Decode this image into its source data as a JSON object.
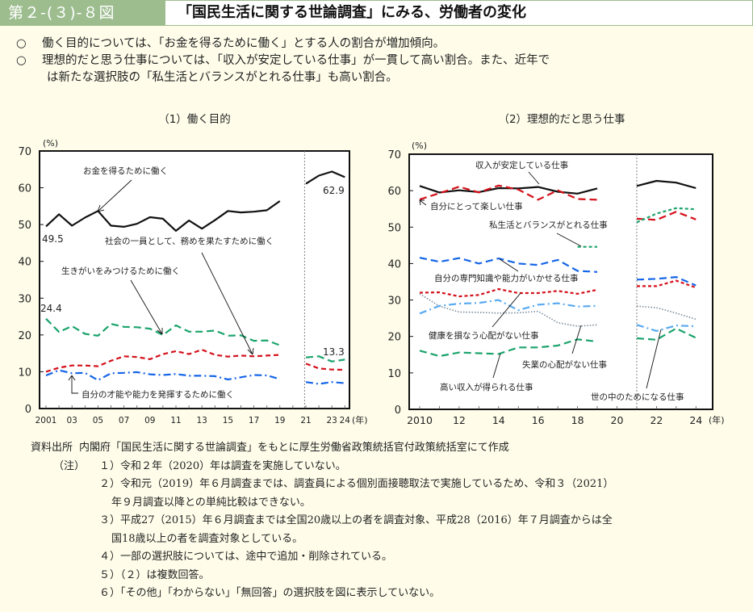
{
  "header": {
    "figure_number": "第２-(３)-８図",
    "title": "「国民生活に関する世論調査」にみる、労働者の変化"
  },
  "summary": {
    "bullet_icon": "○",
    "items": [
      "働く目的については、「お金を得るために働く」とする人の割合が増加傾向。",
      "理想的だと思う仕事については、「収入が安定している仕事」が一貫して高い割合。また、近年で",
      "は新たな選択肢の「私生活とバランスがとれる仕事」も高い割合。"
    ]
  },
  "chart_data": [
    {
      "type": "line",
      "title": "（1）働く目的",
      "ylabel": "(%)",
      "xlabel": "(年)",
      "ylim": [
        0,
        70
      ],
      "yticks": [
        0,
        10,
        20,
        30,
        40,
        50,
        60,
        70
      ],
      "xticks": [
        {
          "x": 2001,
          "label": "2001"
        },
        {
          "x": 2003,
          "label": "03"
        },
        {
          "x": 2005,
          "label": "05"
        },
        {
          "x": 2007,
          "label": "07"
        },
        {
          "x": 2009,
          "label": "09"
        },
        {
          "x": 2011,
          "label": "11"
        },
        {
          "x": 2013,
          "label": "13"
        },
        {
          "x": 2015,
          "label": "15"
        },
        {
          "x": 2017,
          "label": "17"
        },
        {
          "x": 2019,
          "label": "19"
        },
        {
          "x": 2021,
          "label": "21"
        },
        {
          "x": 2023,
          "label": "23"
        },
        {
          "x": 2024,
          "label": "24"
        }
      ],
      "xlim": [
        2000.5,
        2024.5
      ],
      "break_at": 2020.9,
      "grid": false,
      "series": [
        {
          "name": "お金を得るために働く",
          "color": "#111111",
          "dash": "solid",
          "x": [
            2001,
            2002,
            2003,
            2004,
            2005,
            2006,
            2007,
            2008,
            2009,
            2010,
            2011,
            2012,
            2013,
            2014,
            2015,
            2016,
            2017,
            2018,
            2019
          ],
          "values": [
            49.5,
            52.8,
            49.7,
            51.9,
            53.7,
            49.7,
            49.4,
            50.2,
            52.0,
            51.6,
            48.3,
            51.1,
            48.9,
            51.2,
            53.7,
            53.3,
            53.5,
            53.9,
            56.4
          ],
          "x2": [
            2021,
            2022,
            2023,
            2024
          ],
          "values2": [
            61.1,
            63.3,
            64.4,
            62.9
          ]
        },
        {
          "name": "生きがいをみつけるために働く",
          "color": "#1aa36b",
          "dash": "longdash",
          "x": [
            2001,
            2002,
            2003,
            2004,
            2005,
            2006,
            2007,
            2008,
            2009,
            2010,
            2011,
            2012,
            2013,
            2014,
            2015,
            2016,
            2017,
            2018,
            2019
          ],
          "values": [
            24.4,
            20.8,
            22.4,
            20.3,
            19.8,
            23.0,
            22.2,
            22.1,
            21.7,
            20.0,
            22.6,
            20.9,
            20.9,
            21.2,
            19.8,
            19.9,
            18.4,
            18.5,
            17.2
          ],
          "x2": [
            2021,
            2022,
            2023,
            2024
          ],
          "values2": [
            13.9,
            14.2,
            12.8,
            13.3
          ]
        },
        {
          "name": "社会の一員として、務めを果たすために働く",
          "color": "#d4101a",
          "dash": "dash",
          "x": [
            2001,
            2002,
            2003,
            2004,
            2005,
            2006,
            2007,
            2008,
            2009,
            2010,
            2011,
            2012,
            2013,
            2014,
            2015,
            2016,
            2017,
            2018,
            2019
          ],
          "values": [
            10.0,
            11.1,
            11.7,
            11.7,
            11.5,
            13.0,
            14.2,
            14.0,
            13.4,
            14.8,
            15.6,
            14.8,
            16.0,
            14.6,
            14.1,
            14.4,
            14.2,
            14.4,
            14.6
          ],
          "x2": [
            2021,
            2022,
            2023,
            2024
          ],
          "values2": [
            12.2,
            10.9,
            10.6,
            10.5
          ]
        },
        {
          "name": "自分の才能や能力を発揮するために働く",
          "color": "#1565e8",
          "dash": "dashdot",
          "x": [
            2001,
            2002,
            2003,
            2004,
            2005,
            2006,
            2007,
            2008,
            2009,
            2010,
            2011,
            2012,
            2013,
            2014,
            2015,
            2016,
            2017,
            2018,
            2019
          ],
          "values": [
            9.0,
            10.4,
            9.6,
            9.7,
            7.7,
            9.6,
            9.7,
            9.9,
            9.3,
            9.1,
            9.4,
            8.9,
            8.9,
            8.8,
            7.9,
            8.5,
            9.1,
            9.0,
            8.0
          ],
          "x2": [
            2021,
            2022,
            2023,
            2024
          ],
          "values2": [
            7.2,
            6.7,
            7.2,
            6.9
          ]
        }
      ],
      "annotations": [
        {
          "text": "49.5"
        },
        {
          "text": "62.9"
        },
        {
          "text": "24.4"
        },
        {
          "text": "13.3"
        },
        {
          "text": "お金を得るために働く"
        },
        {
          "text": "社会の一員として、務めを果たすために働く"
        },
        {
          "text": "生きがいをみつけるために働く"
        },
        {
          "text": "自分の才能や能力を発揮するために働く"
        }
      ]
    },
    {
      "type": "line",
      "title": "（2）理想的だと思う仕事",
      "ylabel": "(%)",
      "xlabel": "(年)",
      "ylim": [
        0,
        70
      ],
      "yticks": [
        0,
        10,
        20,
        30,
        40,
        50,
        60,
        70
      ],
      "xticks": [
        {
          "x": 2010,
          "label": "2010"
        },
        {
          "x": 2012,
          "label": "12"
        },
        {
          "x": 2014,
          "label": "14"
        },
        {
          "x": 2016,
          "label": "16"
        },
        {
          "x": 2018,
          "label": "18"
        },
        {
          "x": 2020,
          "label": "20"
        },
        {
          "x": 2022,
          "label": "22"
        },
        {
          "x": 2024,
          "label": "24"
        }
      ],
      "xlim": [
        2009.5,
        2024.9
      ],
      "break_at": 2021.0,
      "grid": false,
      "series": [
        {
          "name": "収入が安定している仕事",
          "color": "#111111",
          "dash": "solid",
          "x": [
            2010,
            2011,
            2012,
            2013,
            2014,
            2015,
            2016,
            2017,
            2018,
            2019
          ],
          "values": [
            61.3,
            59.5,
            60.1,
            59.6,
            60.7,
            60.6,
            61.0,
            59.7,
            59.2,
            60.6
          ],
          "x2": [
            2021,
            2022,
            2023,
            2024
          ],
          "values2": [
            61.3,
            62.7,
            62.2,
            60.7
          ]
        },
        {
          "name": "自分にとって楽しい仕事",
          "color": "#d4101a",
          "dash": "longdash",
          "x": [
            2010,
            2011,
            2012,
            2013,
            2014,
            2015,
            2016,
            2017,
            2018,
            2019
          ],
          "values": [
            57.6,
            59.3,
            61.1,
            59.5,
            61.4,
            60.3,
            57.5,
            60.1,
            57.7,
            57.5
          ],
          "x2": [
            2021,
            2022,
            2023,
            2024
          ],
          "values2": [
            52.3,
            52.0,
            54.2,
            52.1
          ]
        },
        {
          "name": "私生活とバランスがとれる仕事",
          "color": "#1aa36b",
          "dash": "shortdash",
          "x": [
            2018,
            2019
          ],
          "values": [
            44.6,
            44.6
          ],
          "x2": [
            2021,
            2022,
            2023,
            2024
          ],
          "values2": [
            51.3,
            53.7,
            55.2,
            54.9
          ]
        },
        {
          "name": "自分の専門知識や能力がいかせる仕事",
          "color": "#1565e8",
          "dash": "longdash",
          "x": [
            2010,
            2011,
            2012,
            2013,
            2014,
            2015,
            2016,
            2017,
            2018,
            2019
          ],
          "values": [
            41.6,
            40.5,
            41.5,
            40.0,
            41.4,
            40.0,
            39.6,
            41.0,
            38.0,
            37.7
          ],
          "x2": [
            2021,
            2022,
            2023,
            2024
          ],
          "values2": [
            35.6,
            35.8,
            36.3,
            34.0
          ]
        },
        {
          "name": "健康を損なう心配がない仕事",
          "color": "#d4101a",
          "dash": "shortdash",
          "x": [
            2010,
            2011,
            2012,
            2013,
            2014,
            2015,
            2016,
            2017,
            2018,
            2019
          ],
          "values": [
            32.0,
            32.1,
            31.0,
            31.4,
            33.0,
            31.9,
            31.9,
            32.5,
            31.7,
            32.8
          ],
          "x2": [
            2021,
            2022,
            2023,
            2024
          ],
          "values2": [
            33.8,
            33.8,
            35.3,
            33.4
          ]
        },
        {
          "name": "失業の心配がない仕事",
          "color": "#7a8a99",
          "dash": "dot",
          "x": [
            2010,
            2011,
            2012,
            2013,
            2014,
            2015,
            2016,
            2017,
            2018,
            2019
          ],
          "values": [
            31.7,
            28.3,
            26.7,
            26.6,
            26.4,
            26.5,
            26.9,
            23.8,
            22.8,
            23.2
          ],
          "x2": [
            2021,
            2022,
            2023,
            2024
          ],
          "values2": [
            28.3,
            27.9,
            26.4,
            24.7
          ]
        },
        {
          "name": "世の中のためになる仕事",
          "color": "#5aaaf0",
          "dash": "dashdot",
          "x": [
            2010,
            2011,
            2012,
            2013,
            2014,
            2015,
            2016,
            2017,
            2018,
            2019
          ],
          "values": [
            26.3,
            28.4,
            29.0,
            29.2,
            30.0,
            27.2,
            28.7,
            29.1,
            28.2,
            28.4
          ],
          "x2": [
            2021,
            2022,
            2023,
            2024
          ],
          "values2": [
            23.2,
            21.5,
            23.0,
            22.8
          ]
        },
        {
          "name": "高い収入が得られる仕事",
          "color": "#1aa36b",
          "dash": "longdash",
          "x": [
            2010,
            2011,
            2012,
            2013,
            2014,
            2015,
            2016,
            2017,
            2018,
            2019
          ],
          "values": [
            16.1,
            14.6,
            15.6,
            15.4,
            15.2,
            17.0,
            17.0,
            17.5,
            19.2,
            18.6
          ],
          "x2": [
            2021,
            2022,
            2023,
            2024
          ],
          "values2": [
            19.5,
            19.1,
            22.2,
            19.6
          ]
        }
      ]
    }
  ],
  "notes": {
    "source_label": "資料出所",
    "source_text": "内閣府「国民生活に関する世論調査」をもとに厚生労働省政策統括官付政策統括室にて作成",
    "note_label": "（注）",
    "items": [
      "１）令和２年（2020）年は調査を実施していない。",
      "２）令和元（2019）年６月調査までは、調査員による個別面接聴取法で実施しているため、令和３（2021）",
      "年９月調査以降との単純比較はできない。",
      "３）平成27（2015）年６月調査までは全国20歳以上の者を調査対象、平成28（2016）年７月調査からは全",
      "国18歳以上の者を調査対象としている。",
      "４）一部の選択肢については、途中で追加・削除されている。",
      "５）（２）は複数回答。",
      "６）「その他」「わからない」「無回答」の選択肢を図に表示していない。"
    ]
  }
}
